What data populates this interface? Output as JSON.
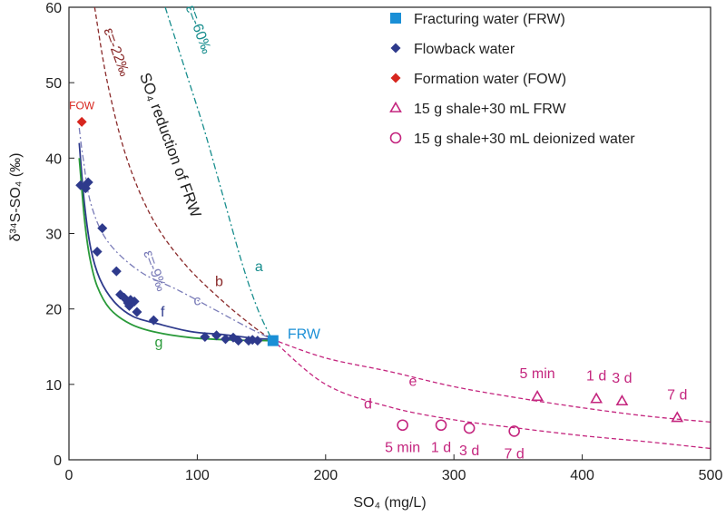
{
  "chart_data": {
    "type": "scatter",
    "xlabel": "SO₄ (mg/L)",
    "ylabel": "δ³⁴S-SO₄ (‰)",
    "xlim": [
      0,
      500
    ],
    "ylim": [
      0,
      60
    ],
    "xticks": [
      0,
      100,
      200,
      300,
      400,
      500
    ],
    "yticks": [
      0,
      10,
      20,
      30,
      40,
      50,
      60
    ],
    "legend_position": "top-right",
    "colors": {
      "frw": "#1a8fd6",
      "flowback": "#2e3a8c",
      "fow": "#d7261e",
      "shale": "#c4257e",
      "curve_a": "#178d8d",
      "curve_b": "#8a2a2a",
      "curve_c": "#7a7cb8",
      "curve_f": "#2e3a8c",
      "curve_g": "#2a9a3a",
      "curve_de": "#c4257e",
      "text": "#222222"
    },
    "legend": [
      {
        "key": "frw",
        "label": "Fracturing water (FRW)",
        "marker": "square"
      },
      {
        "key": "flowback",
        "label": "Flowback water",
        "marker": "diamond"
      },
      {
        "key": "fow",
        "label": "Formation water (FOW)",
        "marker": "diamond"
      },
      {
        "key": "shale_frw",
        "label": "15 g shale+30 mL FRW",
        "marker": "triangle-open"
      },
      {
        "key": "shale_di",
        "label": "15 g shale+30 mL deionized water",
        "marker": "circle-open"
      }
    ],
    "series": [
      {
        "name": "Fracturing water (FRW)",
        "key": "frw",
        "marker": "square",
        "points": [
          [
            159,
            15.8
          ]
        ],
        "point_labels": [
          "FRW"
        ]
      },
      {
        "name": "Formation water (FOW)",
        "key": "fow",
        "marker": "diamond",
        "points": [
          [
            10,
            44.8
          ]
        ],
        "point_labels": [
          "FOW"
        ]
      },
      {
        "name": "Flowback water",
        "key": "flowback",
        "marker": "diamond",
        "points": [
          [
            9,
            36.4
          ],
          [
            12,
            36.2
          ],
          [
            13,
            36.0
          ],
          [
            15,
            36.8
          ],
          [
            22,
            27.6
          ],
          [
            26,
            30.7
          ],
          [
            37,
            25.0
          ],
          [
            40,
            21.9
          ],
          [
            43,
            21.5
          ],
          [
            46,
            20.8
          ],
          [
            47,
            20.4
          ],
          [
            48,
            21.2
          ],
          [
            51,
            21.0
          ],
          [
            53,
            19.6
          ],
          [
            66,
            18.5
          ],
          [
            106,
            16.3
          ],
          [
            115,
            16.5
          ],
          [
            122,
            16.0
          ],
          [
            128,
            16.2
          ],
          [
            132,
            15.8
          ],
          [
            140,
            15.8
          ],
          [
            143,
            15.9
          ],
          [
            147,
            15.8
          ]
        ]
      },
      {
        "name": "15 g shale+30 mL FRW",
        "key": "shale_frw",
        "marker": "triangle-open",
        "points": [
          [
            365,
            8.4
          ],
          [
            411,
            8.1
          ],
          [
            431,
            7.8
          ],
          [
            474,
            5.6
          ]
        ],
        "point_labels": [
          "5 min",
          "1 d",
          "3 d",
          "7 d"
        ]
      },
      {
        "name": "15 g shale+30 mL deionized water",
        "key": "shale_di",
        "marker": "circle-open",
        "points": [
          [
            260,
            4.6
          ],
          [
            290,
            4.6
          ],
          [
            312,
            4.2
          ],
          [
            347,
            3.8
          ]
        ],
        "point_labels": [
          "5 min",
          "1 d",
          "3 d",
          "7 d"
        ]
      }
    ],
    "curves": [
      {
        "name": "a",
        "color_key": "curve_a",
        "dash": "dashdot",
        "points": [
          [
            75,
            60
          ],
          [
            90,
            52
          ],
          [
            105,
            44
          ],
          [
            120,
            35
          ],
          [
            135,
            26
          ],
          [
            147,
            20
          ],
          [
            158,
            16
          ]
        ],
        "label_pos": [
          148,
          25
        ],
        "annotation": "ε=-60‰",
        "annotation_pos": [
          91,
          60
        ]
      },
      {
        "name": "b",
        "color_key": "curve_b",
        "dash": "dash",
        "points": [
          [
            20,
            60
          ],
          [
            30,
            50
          ],
          [
            45,
            40
          ],
          [
            65,
            32
          ],
          [
            90,
            26
          ],
          [
            120,
            21
          ],
          [
            145,
            17.5
          ],
          [
            158,
            16
          ]
        ],
        "label_pos": [
          117,
          23
        ],
        "annotation": "ε=-22‰",
        "annotation_pos": [
          27,
          57
        ]
      },
      {
        "name": "c",
        "color_key": "curve_c",
        "dash": "dashdot",
        "points": [
          [
            8,
            44
          ],
          [
            11,
            40
          ],
          [
            17,
            34
          ],
          [
            30,
            29
          ],
          [
            55,
            25
          ],
          [
            85,
            22.5
          ],
          [
            118,
            19.5
          ],
          [
            140,
            17.5
          ],
          [
            158,
            16
          ]
        ],
        "label_pos": [
          100,
          20.5
        ],
        "annotation": "ε=-9‰",
        "annotation_pos": [
          58,
          27.5
        ]
      },
      {
        "name": "f",
        "color_key": "curve_f",
        "dash": "solid",
        "points": [
          [
            8,
            42
          ],
          [
            12,
            34
          ],
          [
            17,
            28
          ],
          [
            24,
            24
          ],
          [
            35,
            21
          ],
          [
            50,
            19
          ],
          [
            70,
            18
          ],
          [
            95,
            17
          ],
          [
            120,
            16.6
          ],
          [
            145,
            16.1
          ],
          [
            158,
            16
          ]
        ],
        "label_pos": [
          73,
          19
        ]
      },
      {
        "name": "g",
        "color_key": "curve_g",
        "dash": "solid",
        "points": [
          [
            8,
            40
          ],
          [
            12,
            32
          ],
          [
            16,
            27
          ],
          [
            22,
            23
          ],
          [
            32,
            20
          ],
          [
            48,
            18
          ],
          [
            68,
            16.9
          ],
          [
            95,
            16.2
          ],
          [
            125,
            15.9
          ],
          [
            158,
            15.8
          ]
        ],
        "label_pos": [
          70,
          15
        ]
      },
      {
        "name": "d",
        "color_key": "curve_de",
        "dash": "dash",
        "points": [
          [
            158,
            16
          ],
          [
            200,
            10
          ],
          [
            250,
            7
          ],
          [
            300,
            5.3
          ],
          [
            350,
            4.2
          ],
          [
            400,
            3.2
          ],
          [
            450,
            2.4
          ],
          [
            500,
            1.5
          ]
        ],
        "label_pos": [
          233,
          6.8
        ]
      },
      {
        "name": "e",
        "color_key": "curve_de",
        "dash": "dash",
        "points": [
          [
            158,
            16
          ],
          [
            200,
            13.5
          ],
          [
            250,
            11.7
          ],
          [
            300,
            9.7
          ],
          [
            350,
            8.2
          ],
          [
            400,
            6.9
          ],
          [
            450,
            5.8
          ],
          [
            500,
            5.0
          ]
        ],
        "label_pos": [
          268,
          9.8
        ]
      }
    ],
    "annotations": [
      {
        "text": "SO₄ reduction of FRW",
        "pos": [
          55,
          51
        ],
        "rotate": 70,
        "color_key": "text"
      }
    ]
  }
}
